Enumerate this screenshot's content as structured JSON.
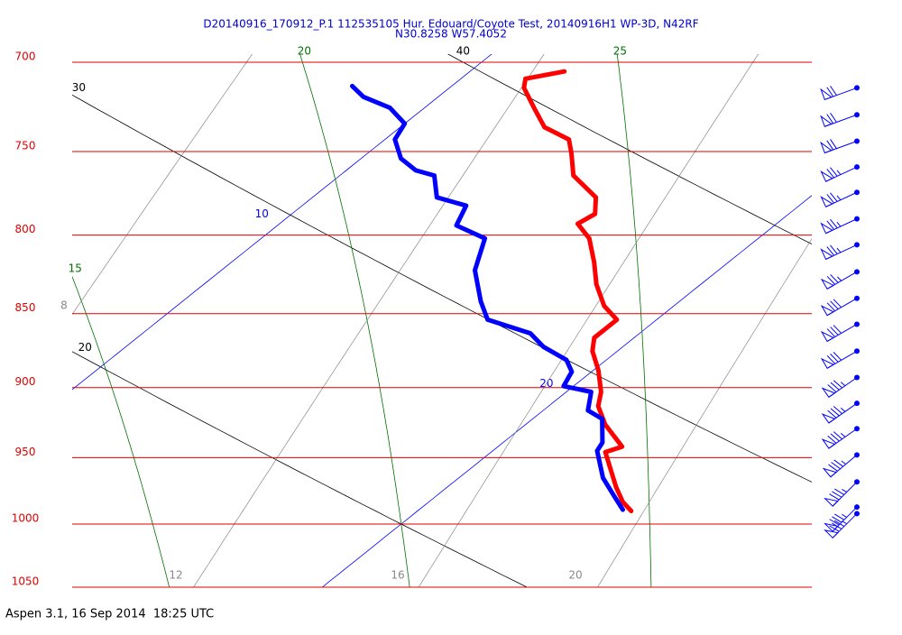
{
  "chart_data": {
    "type": "skewt",
    "title": "D20140916_170912_P.1 112535105 Hur. Edouard/Coyote Test, 20140916H1 WP-3D, N42RF",
    "subtitle": "N30.8258 W57.4052",
    "ylim": [
      1050,
      700
    ],
    "yscale": "log",
    "yticks": [
      700,
      750,
      800,
      850,
      900,
      950,
      1000,
      1050
    ],
    "grid": true,
    "isotherms": [
      10,
      20
    ],
    "dry_adiabats": [
      20,
      30,
      40
    ],
    "moist_adiabats": [
      15,
      20,
      25
    ],
    "mixing_ratios": [
      8,
      12,
      16,
      20
    ],
    "series": [
      {
        "color": "#ff0000",
        "pressure": [
          705,
          709,
          714,
          725,
          736,
          743,
          751,
          764,
          777,
          787,
          793,
          802,
          817,
          831,
          845,
          854,
          866,
          875,
          888,
          903,
          913,
          926,
          942,
          946,
          972,
          983,
          990
        ],
        "values": [
          11.9,
          11.3,
          11.5,
          12.2,
          12.9,
          13.7,
          14.1,
          14.7,
          15.7,
          16.1,
          16.0,
          16.6,
          17.3,
          17.9,
          18.6,
          19.2,
          19.2,
          19.5,
          20.1,
          20.7,
          21.0,
          21.6,
          22.5,
          22.3,
          23.4,
          23.9,
          24.3
        ]
      },
      {
        "color": "#0000ff",
        "pressure": [
          713,
          719,
          725,
          734,
          743,
          754,
          761,
          764,
          777,
          782,
          794,
          802,
          822,
          842,
          854,
          863,
          872,
          881,
          889,
          899,
          903,
          916,
          922,
          939,
          945,
          965,
          979,
          989
        ],
        "values": [
          8.0,
          8.5,
          9.3,
          10.0,
          10.2,
          10.8,
          11.4,
          11.9,
          12.5,
          13.3,
          13.6,
          14.5,
          15.1,
          16.0,
          16.6,
          17.8,
          18.4,
          19.2,
          19.6,
          19.8,
          20.5,
          20.9,
          21.4,
          22.0,
          22.1,
          22.9,
          23.6,
          24.1
        ]
      }
    ],
    "wind": {
      "pressure": [
        714,
        729,
        744,
        759,
        774,
        790,
        806,
        823,
        840,
        857,
        875,
        893,
        911,
        929,
        948,
        968,
        987,
        992
      ],
      "speed": [
        70,
        70,
        70,
        75,
        75,
        75,
        75,
        75,
        80,
        80,
        80,
        85,
        85,
        85,
        85,
        85,
        85,
        85
      ],
      "direction": [
        250,
        250,
        250,
        245,
        245,
        245,
        245,
        240,
        240,
        240,
        240,
        235,
        235,
        235,
        230,
        225,
        225,
        225
      ]
    },
    "footer": "Aspen 3.1, 16 Sep 2014  18:25 UTC"
  }
}
